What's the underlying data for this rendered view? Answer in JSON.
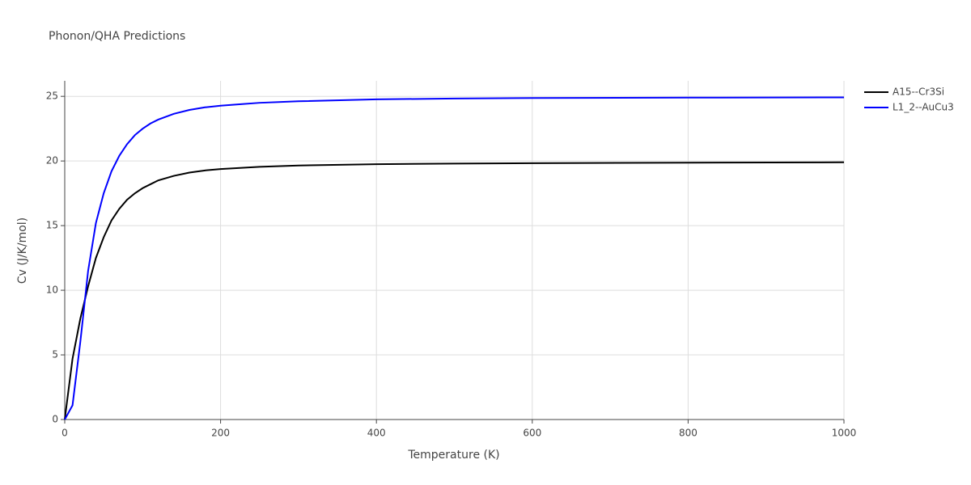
{
  "chart_data": {
    "type": "line",
    "title": "Phonon/QHA Predictions",
    "x_label": "Temperature (K)",
    "y_label": "Cv (J/K/mol)",
    "x": [
      0,
      10,
      20,
      30,
      40,
      50,
      60,
      70,
      80,
      90,
      100,
      110,
      120,
      140,
      160,
      180,
      200,
      250,
      300,
      400,
      500,
      600,
      800,
      1000
    ],
    "series": [
      {
        "name": "A15--Cr3Si",
        "color": "#000000",
        "values": [
          0,
          4.7,
          7.8,
          10.3,
          12.5,
          14.1,
          15.4,
          16.3,
          17.0,
          17.5,
          17.9,
          18.2,
          18.5,
          18.85,
          19.1,
          19.27,
          19.38,
          19.55,
          19.65,
          19.75,
          19.8,
          19.83,
          19.87,
          19.9
        ]
      },
      {
        "name": "L1_2--AuCu3",
        "color": "#0000ff",
        "values": [
          0,
          1.1,
          6.0,
          11.5,
          15.2,
          17.5,
          19.2,
          20.4,
          21.3,
          22.0,
          22.5,
          22.9,
          23.2,
          23.65,
          23.95,
          24.15,
          24.28,
          24.5,
          24.62,
          24.77,
          24.83,
          24.87,
          24.9,
          24.92
        ]
      }
    ],
    "xlim": [
      0,
      1000
    ],
    "xticks": [
      0,
      200,
      400,
      600,
      800,
      1000
    ],
    "ylim": [
      0,
      26.2
    ],
    "yticks": [
      0,
      5,
      10,
      15,
      20,
      25
    ],
    "grid": true,
    "legend": "top-right"
  }
}
